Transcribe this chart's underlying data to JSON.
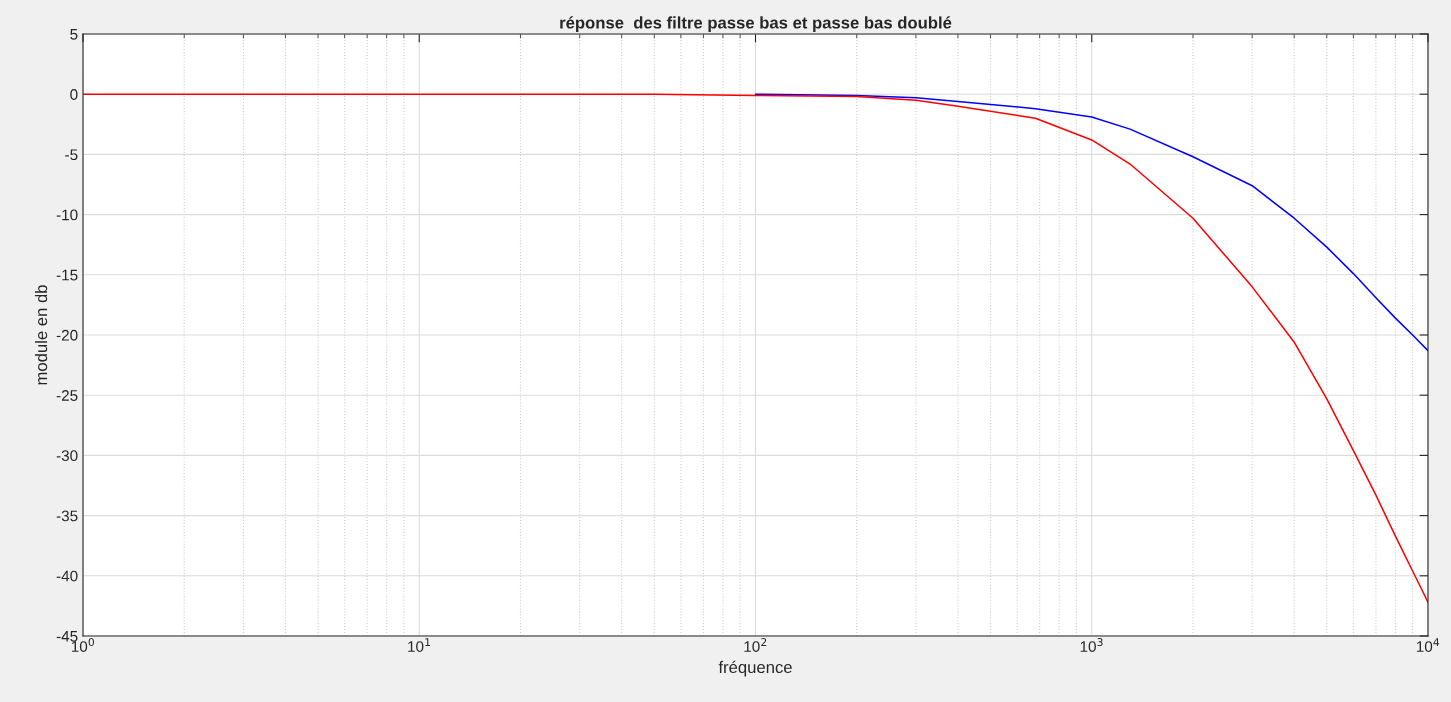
{
  "chart_data": {
    "type": "line",
    "title": "réponse  des filtre passe bas et passe bas doublé",
    "xlabel": "fréquence",
    "ylabel": "module en db",
    "log": "x",
    "xlim": [
      1,
      10000
    ],
    "xticks": [
      {
        "value": 1,
        "label": "10$^{0}$"
      },
      {
        "value": 10,
        "label": "10$^{1}$"
      },
      {
        "value": 100,
        "label": "10$^{2}$"
      },
      {
        "value": 1000,
        "label": "10$^{3}$"
      },
      {
        "value": 10000,
        "label": "10$^{4}$"
      }
    ],
    "ylim": [
      -45,
      5
    ],
    "yticks": [
      5,
      0,
      -5,
      -10,
      -15,
      -20,
      -25,
      -30,
      -35,
      -40,
      -45
    ],
    "grid": true,
    "legend": false,
    "x": [
      1,
      10,
      50,
      100,
      200,
      300,
      400,
      680,
      1000,
      1300,
      2000,
      3000,
      4000,
      5000,
      6000,
      7000,
      8000,
      9000,
      10000
    ],
    "series": [
      {
        "color": "#0000ff",
        "values": [
          null,
          null,
          null,
          0,
          -0.1,
          -0.3,
          -0.6,
          -1.2,
          -1.9,
          -2.9,
          -5.2,
          -7.6,
          -10.3,
          -12.7,
          -14.9,
          -16.9,
          -18.6,
          -20,
          -21.3
        ]
      },
      {
        "color": "#ff0000",
        "values": [
          0,
          0,
          0,
          -0.1,
          -0.2,
          -0.5,
          -1.0,
          -2.0,
          -3.8,
          -5.8,
          -10.3,
          -16,
          -20.6,
          -25.3,
          -29.6,
          -33.3,
          -36.7,
          -39.6,
          -42.2
        ]
      }
    ]
  }
}
